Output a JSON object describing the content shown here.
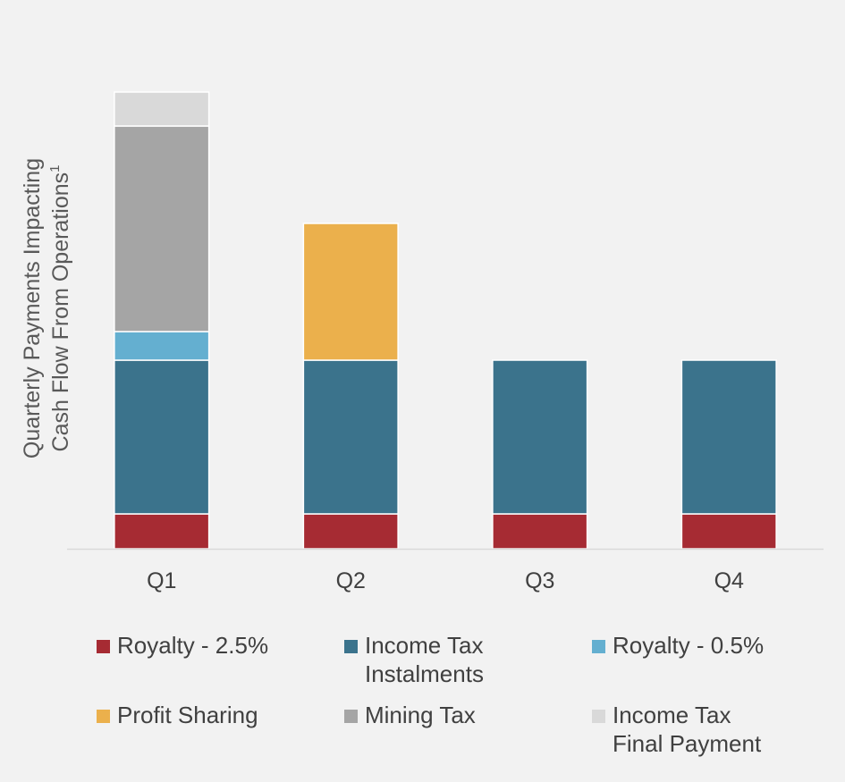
{
  "chart_data": {
    "type": "bar",
    "stacked": true,
    "ylabel_lines": [
      "Quarterly Payments Impacting",
      "Cash Flow From Operations"
    ],
    "ylabel_superscript": "1",
    "categories": [
      "Q1",
      "Q2",
      "Q3",
      "Q4"
    ],
    "series": [
      {
        "name": "Royalty - 2.5%",
        "color": "#a62b33",
        "values": [
          39,
          39,
          39,
          39
        ]
      },
      {
        "name": "Income Tax\nInstalments",
        "color": "#3b738c",
        "values": [
          172,
          172,
          172,
          172
        ]
      },
      {
        "name": "Royalty - 0.5%",
        "color": "#64afd0",
        "values": [
          32,
          0,
          0,
          0
        ]
      },
      {
        "name": "Profit Sharing",
        "color": "#ebb04c",
        "values": [
          0,
          153,
          0,
          0
        ]
      },
      {
        "name": "Mining Tax",
        "color": "#a5a5a5",
        "values": [
          230,
          0,
          0,
          0
        ]
      },
      {
        "name": "Income Tax\nFinal Payment",
        "color": "#d9d9d9",
        "values": [
          38,
          0,
          0,
          0
        ]
      }
    ],
    "ylim": [
      0,
      520
    ],
    "grid": false,
    "axis_color": "#d9d9d9",
    "legend_position": "bottom"
  }
}
